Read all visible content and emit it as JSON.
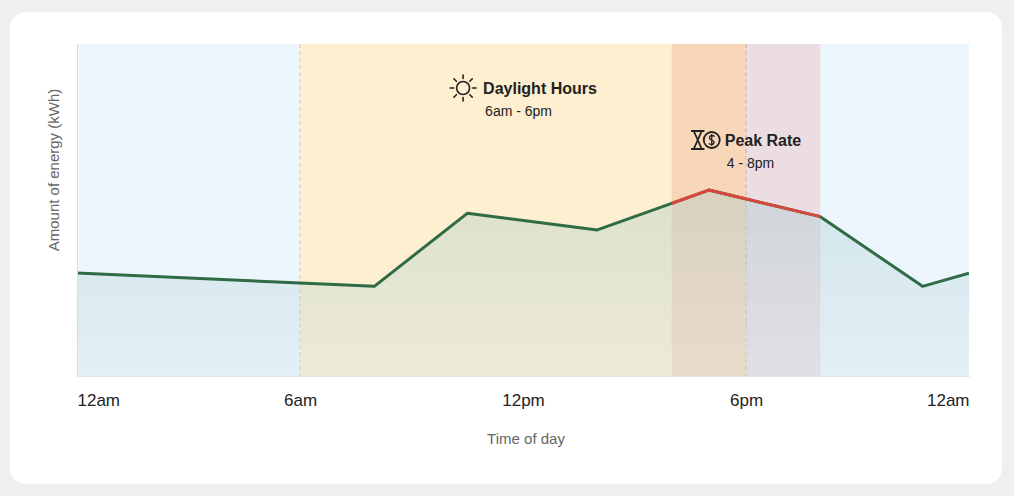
{
  "chart_data": {
    "type": "line",
    "x_label": "Time of day",
    "y_label": "Amount of energy (kWh)",
    "x": [
      0,
      6,
      8,
      10.5,
      14,
      17,
      20,
      22.75,
      24
    ],
    "values": [
      3.1,
      2.8,
      2.7,
      4.9,
      4.4,
      5.6,
      4.8,
      2.7,
      3.1
    ],
    "color": "#2f6b45",
    "xlim": [
      0,
      24
    ],
    "ylim": [
      0,
      10
    ],
    "xticks": [
      {
        "value": 0,
        "label": "12am"
      },
      {
        "value": 6,
        "label": "6am"
      },
      {
        "value": 12,
        "label": "12pm"
      },
      {
        "value": 18,
        "label": "6pm"
      },
      {
        "value": 24,
        "label": "12am"
      }
    ],
    "yticks": [],
    "tick_labels": "x",
    "grid": false,
    "annotations": [
      {
        "text": "Daylight Hours",
        "subtext": "6am - 6pm",
        "x": [
          6,
          18
        ],
        "color": "#fdefcf"
      },
      {
        "text": "Peak Rate",
        "subtext": "4 - 8pm",
        "x": [
          16,
          20
        ],
        "color": "#d9473c"
      }
    ]
  }
}
